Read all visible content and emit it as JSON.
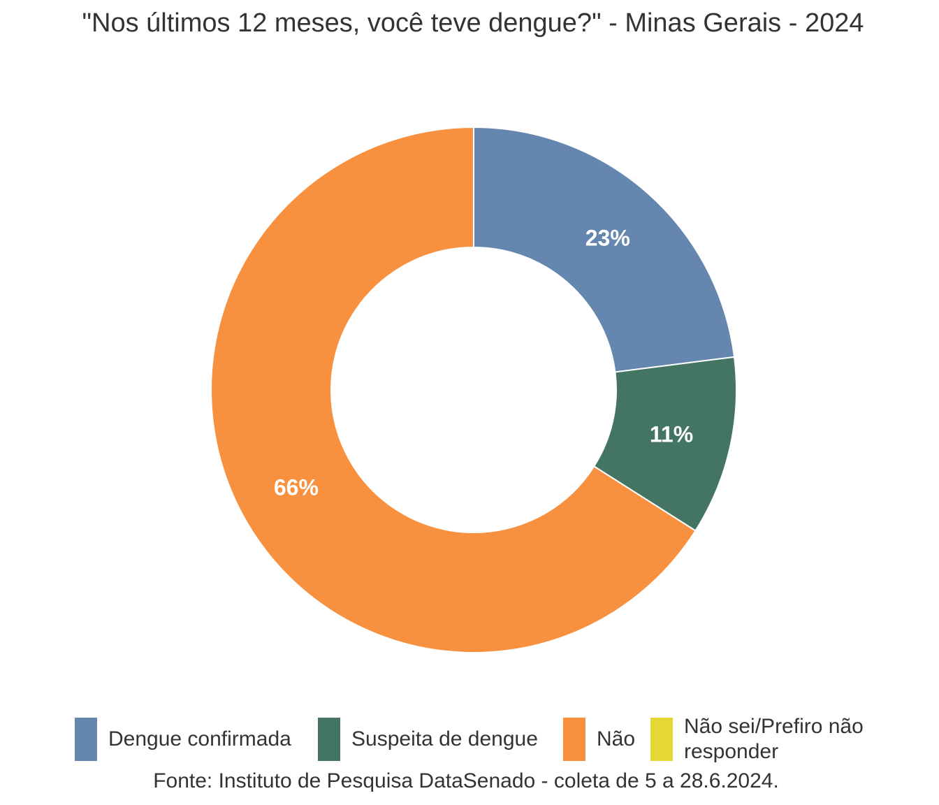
{
  "chart_data": {
    "type": "pie",
    "subtype": "donut",
    "title": "\"Nos últimos 12 meses, você teve dengue?\" - Minas Gerais - 2024",
    "categories": [
      "Dengue confirmada",
      "Suspeita de dengue",
      "Não",
      "Não sei/Prefiro não responder"
    ],
    "values": [
      23,
      11,
      66,
      0
    ],
    "data_labels": [
      "23%",
      "11%",
      "66%",
      ""
    ],
    "colors": [
      "#6586AE",
      "#447462",
      "#F8913F",
      "#E5D735"
    ],
    "legend_position": "bottom",
    "source": "Fonte: Instituto de Pesquisa DataSenado - coleta de 5 a 28.6.2024."
  }
}
